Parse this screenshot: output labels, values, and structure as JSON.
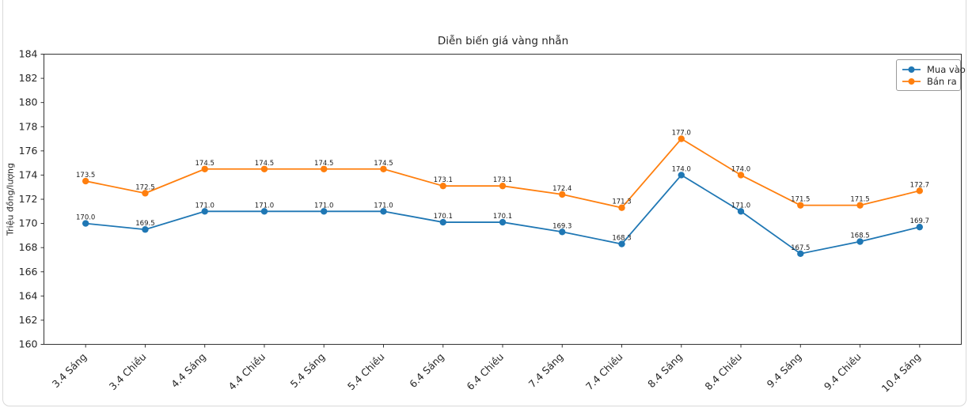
{
  "page": {
    "background_color": "#ffffff",
    "card_border_color": "#d9d9d9"
  },
  "chart_data": {
    "type": "line",
    "title": "Diễn biến giá vàng nhẫn",
    "xlabel": "",
    "ylabel": "Triệu đồng/lượng",
    "ylim": [
      160,
      184
    ],
    "ytick_step": 2,
    "grid": false,
    "legend_position": "upper right",
    "point_labels": true,
    "x_tick_rotation": 45,
    "categories": [
      "3.4 Sáng",
      "3.4 Chiều",
      "4.4 Sáng",
      "4.4 Chiều",
      "5.4 Sáng",
      "5.4 Chiều",
      "6.4 Sáng",
      "6.4 Chiều",
      "7.4 Sáng",
      "7.4 Chiều",
      "8.4 Sáng",
      "8.4 Chiều",
      "9.4 Sáng",
      "9.4 Chiều",
      "10.4 Sáng"
    ],
    "series": [
      {
        "name": "Mua vào",
        "color": "#1f77b4",
        "values": [
          170.0,
          169.5,
          171.0,
          171.0,
          171.0,
          171.0,
          170.1,
          170.1,
          169.3,
          168.3,
          174.0,
          171.0,
          167.5,
          168.5,
          169.7
        ]
      },
      {
        "name": "Bán ra",
        "color": "#ff7f0e",
        "values": [
          173.5,
          172.5,
          174.5,
          174.5,
          174.5,
          174.5,
          173.1,
          173.1,
          172.4,
          171.3,
          177.0,
          174.0,
          171.5,
          171.5,
          172.7
        ]
      }
    ],
    "colors": {
      "spine": "#333333",
      "tick_label": "#262626",
      "point_label": "#1a1a1a"
    }
  }
}
